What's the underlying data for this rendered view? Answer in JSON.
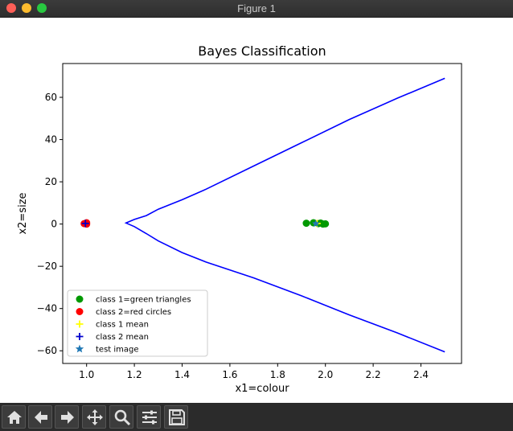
{
  "window": {
    "title": "Figure 1"
  },
  "toolbar": {
    "buttons": [
      {
        "name": "home-button",
        "icon": "home-icon"
      },
      {
        "name": "back-button",
        "icon": "arrow-left-icon"
      },
      {
        "name": "forward-button",
        "icon": "arrow-right-icon"
      },
      {
        "name": "pan-button",
        "icon": "move-icon"
      },
      {
        "name": "zoom-button",
        "icon": "magnifier-icon"
      },
      {
        "name": "configure-subplots-button",
        "icon": "sliders-icon"
      },
      {
        "name": "save-button",
        "icon": "floppy-disk-icon"
      }
    ]
  },
  "chart_data": {
    "type": "scatter",
    "title": "Bayes Classification",
    "xlabel": "x1=colour",
    "ylabel": "x2=size",
    "xlim": [
      0.9,
      2.57
    ],
    "ylim": [
      -66,
      76
    ],
    "xticks": [
      1.0,
      1.2,
      1.4,
      1.6,
      1.8,
      2.0,
      2.2,
      2.4
    ],
    "xtick_labels": [
      "1.0",
      "1.2",
      "1.4",
      "1.6",
      "1.8",
      "2.0",
      "2.2",
      "2.4"
    ],
    "yticks": [
      -60,
      -40,
      -20,
      0,
      20,
      40,
      60
    ],
    "ytick_labels": [
      "−60",
      "−40",
      "−20",
      "0",
      "20",
      "40",
      "60"
    ],
    "grid": false,
    "legend_position": "lower-left",
    "series": [
      {
        "name": "class 1=green triangles",
        "marker": "circle",
        "color": "#009900",
        "x": [
          1.92,
          1.95,
          1.97,
          1.98,
          1.99,
          2.0
        ],
        "y": [
          0.4,
          0.6,
          0.2,
          0.5,
          0.0,
          0.1
        ]
      },
      {
        "name": "class 2=red circles",
        "marker": "circle",
        "color": "#ff0000",
        "x": [
          0.99,
          1.0,
          1.0
        ],
        "y": [
          0.2,
          0.6,
          0.0
        ]
      },
      {
        "name": "class 1 mean",
        "marker": "plus",
        "color": "#ffff00",
        "x": [
          1.965
        ],
        "y": [
          0.3
        ]
      },
      {
        "name": "class 2 mean",
        "marker": "plus",
        "color": "#0000cc",
        "x": [
          0.995
        ],
        "y": [
          0.3
        ]
      },
      {
        "name": "test image",
        "marker": "star",
        "color": "#1f77b4",
        "x": [
          1.96
        ],
        "y": [
          0.2
        ]
      }
    ],
    "boundary": {
      "color": "#0000ff",
      "vertex": [
        1.165,
        0.5
      ],
      "points": [
        [
          2.5,
          69.0
        ],
        [
          2.3,
          59.5
        ],
        [
          2.1,
          49.5
        ],
        [
          1.9,
          38.5
        ],
        [
          1.7,
          27.5
        ],
        [
          1.5,
          16.5
        ],
        [
          1.4,
          11.5
        ],
        [
          1.3,
          7.0
        ],
        [
          1.25,
          4.0
        ],
        [
          1.2,
          2.2
        ],
        [
          1.165,
          0.5
        ],
        [
          1.2,
          -1.2
        ],
        [
          1.25,
          -4.5
        ],
        [
          1.3,
          -8.0
        ],
        [
          1.4,
          -13.5
        ],
        [
          1.5,
          -18.0
        ],
        [
          1.7,
          -25.5
        ],
        [
          1.9,
          -34.0
        ],
        [
          2.1,
          -43.0
        ],
        [
          2.3,
          -51.5
        ],
        [
          2.5,
          -60.5
        ]
      ]
    }
  }
}
